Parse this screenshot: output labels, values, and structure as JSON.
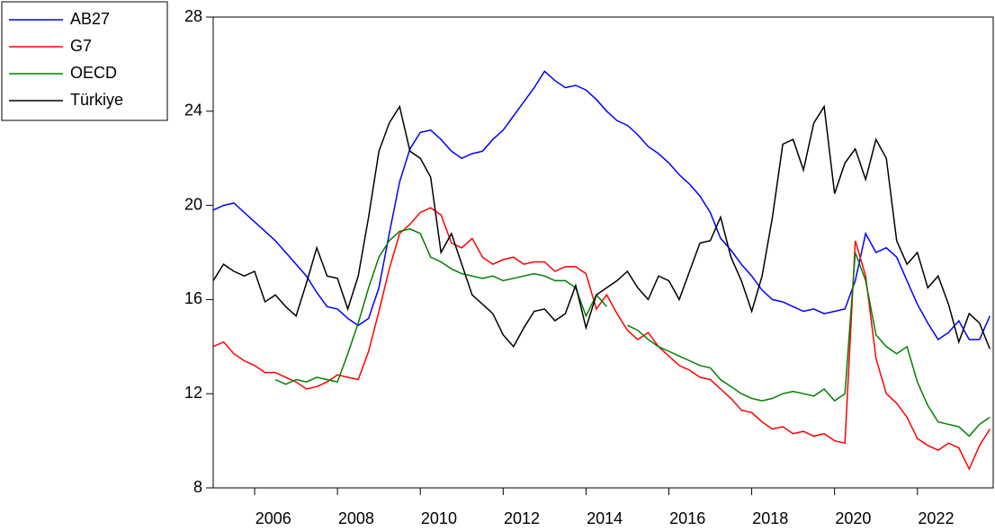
{
  "chart_data": {
    "type": "line",
    "x": [
      2005,
      2005.25,
      2005.5,
      2005.75,
      2006,
      2006.25,
      2006.5,
      2006.75,
      2007,
      2007.25,
      2007.5,
      2007.75,
      2008,
      2008.25,
      2008.5,
      2008.75,
      2009,
      2009.25,
      2009.5,
      2009.75,
      2010,
      2010.25,
      2010.5,
      2010.75,
      2011,
      2011.25,
      2011.5,
      2011.75,
      2012,
      2012.25,
      2012.5,
      2012.75,
      2013,
      2013.25,
      2013.5,
      2013.75,
      2014,
      2014.25,
      2014.5,
      2014.75,
      2015,
      2015.25,
      2015.5,
      2015.75,
      2016,
      2016.25,
      2016.5,
      2016.75,
      2017,
      2017.25,
      2017.5,
      2017.75,
      2018,
      2018.25,
      2018.5,
      2018.75,
      2019,
      2019.25,
      2019.5,
      2019.75,
      2020,
      2020.25,
      2020.5,
      2020.75,
      2021,
      2021.25,
      2021.5,
      2021.75,
      2022,
      2022.25,
      2022.5,
      2022.75,
      2023,
      2023.25,
      2023.5,
      2023.75
    ],
    "series": [
      {
        "name": "AB27",
        "color": "#0000ff",
        "values": [
          19.8,
          20.0,
          20.1,
          19.7,
          19.3,
          18.9,
          18.5,
          18.0,
          17.5,
          17.0,
          16.3,
          15.7,
          15.6,
          15.2,
          14.9,
          15.2,
          16.5,
          18.8,
          21.0,
          22.4,
          23.1,
          23.2,
          22.8,
          22.3,
          22.0,
          22.2,
          22.3,
          22.8,
          23.2,
          23.8,
          24.4,
          25.0,
          25.7,
          25.3,
          25.0,
          25.1,
          24.9,
          24.5,
          24.0,
          23.6,
          23.4,
          23.0,
          22.5,
          22.2,
          21.8,
          21.3,
          20.9,
          20.4,
          19.7,
          18.6,
          18.1,
          17.5,
          17.0,
          16.4,
          16.0,
          15.9,
          15.7,
          15.5,
          15.6,
          15.4,
          15.5,
          15.6,
          16.8,
          18.8,
          18.0,
          18.2,
          17.8,
          16.8,
          15.8,
          15.0,
          14.3,
          14.6,
          15.1,
          14.3,
          14.3,
          15.3
        ]
      },
      {
        "name": "G7",
        "color": "#ff0000",
        "values": [
          14.0,
          14.2,
          13.7,
          13.4,
          13.2,
          12.9,
          12.9,
          12.7,
          12.5,
          12.2,
          12.3,
          12.5,
          12.8,
          12.7,
          12.6,
          13.8,
          15.5,
          17.3,
          18.8,
          19.2,
          19.7,
          19.9,
          19.6,
          18.4,
          18.2,
          18.6,
          17.8,
          17.5,
          17.7,
          17.8,
          17.5,
          17.6,
          17.6,
          17.2,
          17.4,
          17.4,
          17.1,
          15.6,
          16.2,
          15.4,
          14.7,
          14.3,
          14.6,
          14.0,
          13.6,
          13.2,
          13.0,
          12.7,
          12.6,
          12.2,
          11.8,
          11.3,
          11.2,
          10.8,
          10.5,
          10.6,
          10.3,
          10.4,
          10.2,
          10.3,
          10.0,
          9.9,
          18.5,
          17.0,
          13.5,
          12.0,
          11.6,
          11.0,
          10.1,
          9.8,
          9.6,
          9.9,
          9.7,
          8.8,
          9.8,
          10.5
        ]
      },
      {
        "name": "OECD",
        "color": "#008000",
        "values": [
          null,
          null,
          null,
          null,
          null,
          null,
          12.6,
          12.4,
          12.6,
          12.5,
          12.7,
          12.6,
          12.5,
          13.7,
          15.0,
          16.5,
          17.8,
          18.5,
          18.9,
          19.0,
          18.8,
          17.8,
          17.6,
          17.3,
          17.1,
          17.0,
          16.9,
          17.0,
          16.8,
          16.9,
          17.0,
          17.1,
          17.0,
          16.8,
          16.8,
          16.5,
          15.3,
          16.2,
          15.7,
          null,
          14.9,
          14.7,
          14.3,
          14.0,
          13.8,
          13.6,
          13.4,
          13.2,
          13.1,
          12.6,
          12.3,
          12.0,
          11.8,
          11.7,
          11.8,
          12.0,
          12.1,
          12.0,
          11.9,
          12.2,
          11.7,
          12.0,
          18.0,
          16.8,
          14.5,
          14.0,
          13.7,
          14.0,
          12.5,
          11.5,
          10.8,
          10.7,
          10.6,
          10.2,
          10.7,
          11.0
        ]
      },
      {
        "name": "Türkiye",
        "color": "#000000",
        "values": [
          16.8,
          17.5,
          17.2,
          17.0,
          17.2,
          15.9,
          16.2,
          15.7,
          15.3,
          16.7,
          18.2,
          17.0,
          16.9,
          15.6,
          17.0,
          19.5,
          22.3,
          23.5,
          24.2,
          22.3,
          22.0,
          21.2,
          18.0,
          18.8,
          17.5,
          16.2,
          15.8,
          15.4,
          14.5,
          14.0,
          14.8,
          15.5,
          15.6,
          15.1,
          15.4,
          16.6,
          14.8,
          16.2,
          16.5,
          16.8,
          17.2,
          16.5,
          16.0,
          17.0,
          16.8,
          16.0,
          17.2,
          18.4,
          18.5,
          19.5,
          17.8,
          16.8,
          15.5,
          17.0,
          19.5,
          22.6,
          22.8,
          21.5,
          23.5,
          24.2,
          20.5,
          21.8,
          22.4,
          21.1,
          22.8,
          22.0,
          18.5,
          17.5,
          18.0,
          16.5,
          17.0,
          15.8,
          14.2,
          15.4,
          15.0,
          13.9
        ]
      }
    ],
    "xlim": [
      2005,
      2023.83
    ],
    "xticks": [
      2006,
      2008,
      2010,
      2012,
      2014,
      2016,
      2018,
      2020,
      2022
    ],
    "ylim": [
      8,
      28
    ],
    "yticks": [
      8,
      12,
      16,
      20,
      24,
      28
    ],
    "legend_position": "upper left",
    "grid": false
  }
}
